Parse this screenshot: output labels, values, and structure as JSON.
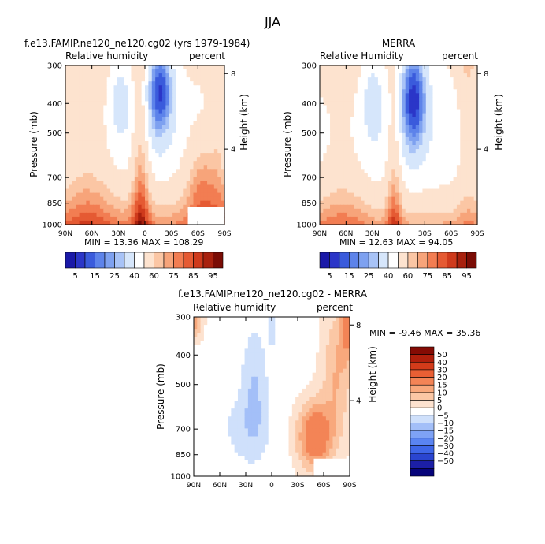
{
  "figure_title": "JJA",
  "palette_fields": [
    "#1a19a8",
    "#2b36c8",
    "#3a5bdc",
    "#5d83ea",
    "#7ea1f0",
    "#a8c3f7",
    "#d6e6fb",
    "#ffffff",
    "#fde3cf",
    "#fbc6a4",
    "#f7a47a",
    "#f27d52",
    "#e55a33",
    "#cf3a1c",
    "#a8210e",
    "#7a0c05"
  ],
  "palette_diff": [
    "#06037a",
    "#1c1fa6",
    "#2a45d0",
    "#3e66e8",
    "#5a84f2",
    "#7ea2f5",
    "#a3bff8",
    "#cfe0fb",
    "#ffffff",
    "#fde2cf",
    "#fbc7a5",
    "#f8a87c",
    "#f38456",
    "#e95f34",
    "#d33b1a",
    "#b01f0c",
    "#850b04"
  ],
  "chart_data": [
    {
      "type": "heatmap",
      "id": "model",
      "title": "f.e13.FAMIP.ne120_ne120.cg02 (yrs 1979-1984)",
      "left_label": "Relative humidity",
      "right_label": "percent",
      "ylabel": "Pressure (mb)",
      "ylabel_right": "Height (km)",
      "x_ticks": [
        "90N",
        "60N",
        "30N",
        "0",
        "30S",
        "60S",
        "90S"
      ],
      "y_ticks": [
        "300",
        "400",
        "500",
        "700",
        "850",
        "1000"
      ],
      "y_right_ticks": [
        "8",
        "4"
      ],
      "stats": "MIN =   13.36   MAX =  108.29",
      "colorbar_labels": [
        "5",
        "15",
        "25",
        "40",
        "60",
        "75",
        "85",
        "95"
      ]
    },
    {
      "type": "heatmap",
      "id": "merra",
      "title": "MERRA",
      "left_label": "Relative Humidity",
      "right_label": "percent",
      "ylabel": "Pressure (mb)",
      "ylabel_right": "Height (km)",
      "x_ticks": [
        "90N",
        "60N",
        "30N",
        "0",
        "30S",
        "60S",
        "90S"
      ],
      "y_ticks": [
        "300",
        "400",
        "500",
        "700",
        "850",
        "1000"
      ],
      "y_right_ticks": [
        "8",
        "4"
      ],
      "stats": "MIN =   12.63   MAX =   94.05",
      "colorbar_labels": [
        "5",
        "15",
        "25",
        "40",
        "60",
        "75",
        "85",
        "95"
      ]
    },
    {
      "type": "heatmap",
      "id": "diff",
      "title": "f.e13.FAMIP.ne120_ne120.cg02 - MERRA",
      "left_label": "Relative humidity",
      "right_label": "percent",
      "ylabel": "Pressure (mb)",
      "ylabel_right": "Height (km)",
      "x_ticks": [
        "90N",
        "60N",
        "30N",
        "0",
        "30S",
        "60S",
        "90S"
      ],
      "y_ticks": [
        "300",
        "400",
        "500",
        "700",
        "850",
        "1000"
      ],
      "y_right_ticks": [
        "8",
        "4"
      ],
      "stats": "MIN =   -9.46   MAX =   35.36",
      "colorbar_labels": [
        "50",
        "40",
        "30",
        "20",
        "15",
        "10",
        "5",
        "0",
        "−5",
        "−10",
        "−15",
        "−20",
        "−30",
        "−40",
        "−50"
      ]
    }
  ]
}
